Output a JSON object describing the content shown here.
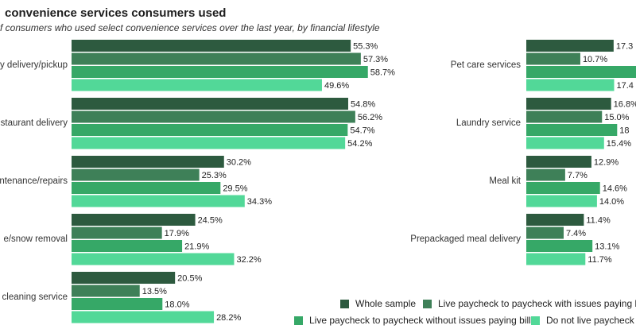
{
  "title": "convenience services consumers used",
  "subtitle": "f consumers who used select convenience services over the last year, by financial lifestyle",
  "colors": {
    "whole_sample": "#2d5a3f",
    "issues_paying_bills": "#3e8058",
    "without_issues": "#36a867",
    "do_not_live": "#52d898"
  },
  "chart_data": [
    {
      "type": "bar",
      "orientation": "horizontal",
      "categories": [
        "y delivery/pickup",
        "staurant delivery",
        "ntenance/repairs",
        "e/snow removal",
        "cleaning service"
      ],
      "series": [
        {
          "name": "Whole sample",
          "values": [
            55.3,
            54.8,
            30.2,
            24.5,
            20.5
          ],
          "labels": [
            "55.3%",
            "54.8%",
            "30.2%",
            "24.5%",
            "20.5%"
          ]
        },
        {
          "name": "Live paycheck to paycheck with issues paying bills",
          "values": [
            57.3,
            56.2,
            25.3,
            17.9,
            13.5
          ],
          "labels": [
            "57.3%",
            "56.2%",
            "25.3%",
            "17.9%",
            "13.5%"
          ]
        },
        {
          "name": "Live paycheck to paycheck without issues paying bills",
          "values": [
            58.7,
            54.7,
            29.5,
            21.9,
            18.0
          ],
          "labels": [
            "58.7%",
            "54.7%",
            "29.5%",
            "21.9%",
            "18.0%"
          ]
        },
        {
          "name": "Do not live paycheck t",
          "values": [
            49.6,
            54.2,
            34.3,
            32.2,
            28.2
          ],
          "labels": [
            "49.6%",
            "54.2%",
            "34.3%",
            "32.2%",
            "28.2%"
          ]
        }
      ],
      "xlim": [
        0,
        65
      ],
      "grid": false
    },
    {
      "type": "bar",
      "orientation": "horizontal",
      "categories": [
        "Pet care services",
        "Laundry service",
        "Meal kit",
        "Prepackaged meal delivery"
      ],
      "series": [
        {
          "name": "Whole sample",
          "values": [
            17.3,
            16.8,
            12.9,
            11.4
          ],
          "labels": [
            "17.3",
            "16.8%",
            "12.9%",
            "11.4%"
          ]
        },
        {
          "name": "Live paycheck to paycheck with issues paying bills",
          "values": [
            10.7,
            15.0,
            7.7,
            7.4
          ],
          "labels": [
            "10.7%",
            "15.0%",
            "7.7%",
            "7.4%"
          ]
        },
        {
          "name": "Live paycheck to paycheck without issues paying bills",
          "values": [
            25.0,
            18.0,
            14.6,
            13.1
          ],
          "labels": [
            "",
            "18",
            "14.6%",
            "13.1%"
          ]
        },
        {
          "name": "Do not live paycheck t",
          "values": [
            17.4,
            15.4,
            14.0,
            11.7
          ],
          "labels": [
            "17.4",
            "15.4%",
            "14.0%",
            "11.7%"
          ]
        }
      ],
      "xlim": [
        0,
        65
      ],
      "grid": false
    }
  ],
  "legend": {
    "position": "bottom-right",
    "items": [
      {
        "label": "Whole sample",
        "color": "#2d5a3f"
      },
      {
        "label": "Live paycheck to paycheck with issues paying bills",
        "color": "#3e8058"
      },
      {
        "label": "Live paycheck to paycheck without issues paying bills",
        "color": "#36a867"
      },
      {
        "label": "Do not live paycheck t",
        "color": "#52d898"
      }
    ]
  }
}
